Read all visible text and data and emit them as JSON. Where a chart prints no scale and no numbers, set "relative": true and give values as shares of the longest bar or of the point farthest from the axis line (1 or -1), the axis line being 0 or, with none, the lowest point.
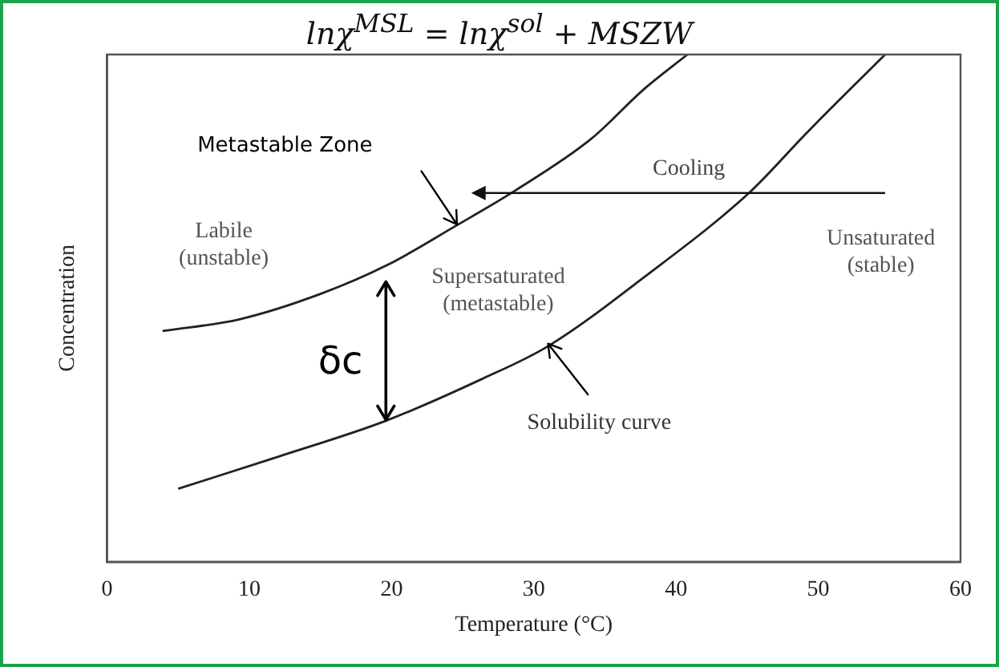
{
  "chart_data": {
    "type": "line",
    "title": "lnχ$^{MSL}$ = lnχ$^{sol}$ + MSZW",
    "xlabel": "Temperature (°C)",
    "ylabel": "Concentration",
    "relative": true,
    "xlim": [
      0,
      60
    ],
    "xticks": [
      0,
      10,
      20,
      30,
      40,
      50,
      60
    ],
    "marker": "none",
    "series": [
      {
        "color": "#222222",
        "x": [
          3.9,
          9.3,
          15,
          19.7,
          24.5,
          28.7,
          34,
          37.8,
          40.8
        ],
        "values": [
          0.455,
          0.478,
          0.528,
          0.585,
          0.662,
          0.732,
          0.833,
          0.933,
          1
        ]
      },
      {
        "color": "#222222",
        "x": [
          5,
          12,
          19.6,
          26.4,
          31,
          37.8,
          45.2,
          49.2,
          54.7
        ],
        "values": [
          0.144,
          0.207,
          0.278,
          0.361,
          0.425,
          0.562,
          0.729,
          0.846,
          1
        ]
      }
    ],
    "annotations": [
      "Metastable Zone",
      "Cooling",
      "Labile\n(unstable)",
      "Supersaturated\n(metastable)",
      "Unsaturated\n(stable)",
      "Solubility curve",
      "δc"
    ]
  }
}
